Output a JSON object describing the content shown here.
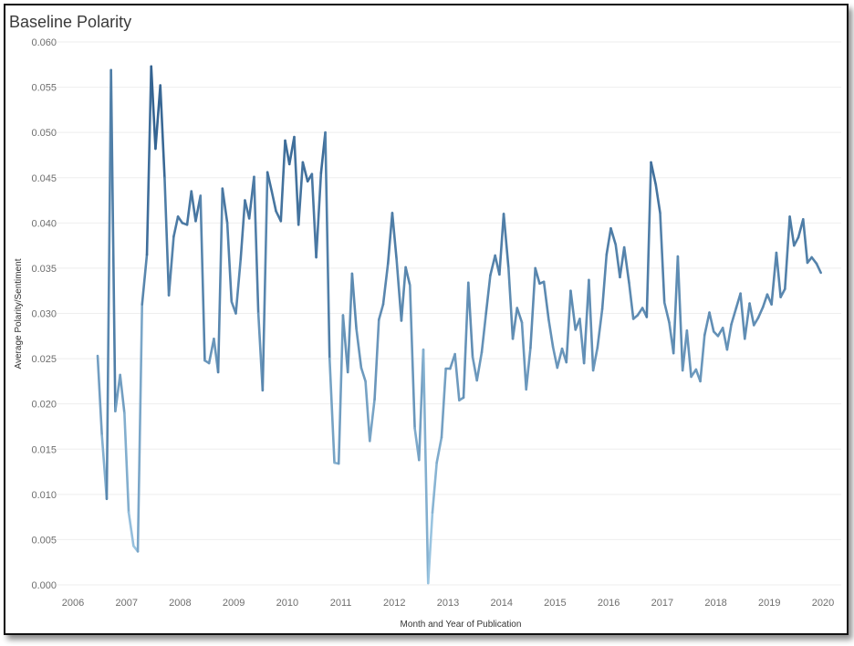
{
  "chart_data": {
    "type": "line",
    "title": "Baseline Polarity",
    "xlabel": "Month and Year of Publication",
    "ylabel": "Average Polarity/Sentiment",
    "xlim": [
      2006.0,
      2020.0
    ],
    "ylim": [
      0.0,
      0.06
    ],
    "x_ticks": [
      "2006",
      "2007",
      "2008",
      "2009",
      "2010",
      "2011",
      "2012",
      "2013",
      "2014",
      "2015",
      "2016",
      "2017",
      "2018",
      "2019",
      "2020"
    ],
    "y_ticks": [
      "0.000",
      "0.005",
      "0.010",
      "0.015",
      "0.020",
      "0.025",
      "0.030",
      "0.035",
      "0.040",
      "0.045",
      "0.050",
      "0.055",
      "0.060"
    ],
    "grid": "horizontal",
    "color_encoding": "sequential blue by value (light = low, dark = high)",
    "colors": {
      "low": "#a6d0ea",
      "high": "#2a5a8a"
    },
    "series": [
      {
        "points": [
          [
            2006.46,
            0.0253
          ],
          [
            2006.54,
            0.0165
          ],
          [
            2006.63,
            0.0095
          ],
          [
            2006.71,
            0.0569
          ],
          [
            2006.79,
            0.0192
          ],
          [
            2006.88,
            0.0232
          ],
          [
            2006.96,
            0.019
          ],
          [
            2007.04,
            0.008
          ],
          [
            2007.13,
            0.0043
          ],
          [
            2007.21,
            0.0037
          ],
          [
            2007.29,
            0.031
          ],
          [
            2007.38,
            0.0365
          ],
          [
            2007.46,
            0.0573
          ],
          [
            2007.54,
            0.0482
          ],
          [
            2007.63,
            0.0552
          ],
          [
            2007.71,
            0.045
          ],
          [
            2007.79,
            0.032
          ],
          [
            2007.88,
            0.0385
          ],
          [
            2007.96,
            0.0407
          ],
          [
            2008.04,
            0.04
          ],
          [
            2008.13,
            0.0398
          ],
          [
            2008.21,
            0.0435
          ],
          [
            2008.29,
            0.0402
          ],
          [
            2008.38,
            0.043
          ],
          [
            2008.46,
            0.0248
          ],
          [
            2008.54,
            0.0245
          ],
          [
            2008.63,
            0.0272
          ],
          [
            2008.71,
            0.0235
          ],
          [
            2008.79,
            0.0438
          ],
          [
            2008.88,
            0.04
          ],
          [
            2008.96,
            0.0313
          ],
          [
            2009.04,
            0.03
          ],
          [
            2009.13,
            0.036
          ],
          [
            2009.21,
            0.0425
          ],
          [
            2009.29,
            0.0405
          ],
          [
            2009.38,
            0.0451
          ],
          [
            2009.46,
            0.03
          ],
          [
            2009.54,
            0.0215
          ],
          [
            2009.63,
            0.0456
          ],
          [
            2009.71,
            0.0435
          ],
          [
            2009.79,
            0.0413
          ],
          [
            2009.88,
            0.0402
          ],
          [
            2009.96,
            0.0491
          ],
          [
            2010.04,
            0.0465
          ],
          [
            2010.13,
            0.0495
          ],
          [
            2010.21,
            0.0398
          ],
          [
            2010.29,
            0.0467
          ],
          [
            2010.38,
            0.0446
          ],
          [
            2010.46,
            0.0454
          ],
          [
            2010.54,
            0.0362
          ],
          [
            2010.63,
            0.0455
          ],
          [
            2010.71,
            0.05
          ],
          [
            2010.79,
            0.025
          ],
          [
            2010.88,
            0.0135
          ],
          [
            2010.96,
            0.0134
          ],
          [
            2011.04,
            0.0298
          ],
          [
            2011.13,
            0.0235
          ],
          [
            2011.21,
            0.0344
          ],
          [
            2011.29,
            0.0283
          ],
          [
            2011.38,
            0.024
          ],
          [
            2011.46,
            0.0225
          ],
          [
            2011.54,
            0.0159
          ],
          [
            2011.63,
            0.0205
          ],
          [
            2011.71,
            0.0293
          ],
          [
            2011.79,
            0.031
          ],
          [
            2011.88,
            0.0355
          ],
          [
            2011.96,
            0.0411
          ],
          [
            2012.04,
            0.036
          ],
          [
            2012.13,
            0.0292
          ],
          [
            2012.21,
            0.0351
          ],
          [
            2012.29,
            0.0331
          ],
          [
            2012.38,
            0.0173
          ],
          [
            2012.46,
            0.0138
          ],
          [
            2012.54,
            0.026
          ],
          [
            2012.63,
            0.0002
          ],
          [
            2012.71,
            0.008
          ],
          [
            2012.79,
            0.0135
          ],
          [
            2012.88,
            0.0163
          ],
          [
            2012.96,
            0.0239
          ],
          [
            2013.04,
            0.0239
          ],
          [
            2013.13,
            0.0255
          ],
          [
            2013.21,
            0.0204
          ],
          [
            2013.29,
            0.0207
          ],
          [
            2013.38,
            0.0334
          ],
          [
            2013.46,
            0.0252
          ],
          [
            2013.54,
            0.0226
          ],
          [
            2013.63,
            0.0257
          ],
          [
            2013.71,
            0.03
          ],
          [
            2013.79,
            0.0342
          ],
          [
            2013.88,
            0.0364
          ],
          [
            2013.96,
            0.0343
          ],
          [
            2014.04,
            0.041
          ],
          [
            2014.13,
            0.035
          ],
          [
            2014.21,
            0.0272
          ],
          [
            2014.29,
            0.0306
          ],
          [
            2014.38,
            0.029
          ],
          [
            2014.46,
            0.0216
          ],
          [
            2014.54,
            0.0262
          ],
          [
            2014.63,
            0.035
          ],
          [
            2014.71,
            0.0333
          ],
          [
            2014.79,
            0.0335
          ],
          [
            2014.88,
            0.0293
          ],
          [
            2014.96,
            0.0263
          ],
          [
            2015.04,
            0.024
          ],
          [
            2015.13,
            0.0261
          ],
          [
            2015.21,
            0.0246
          ],
          [
            2015.29,
            0.0325
          ],
          [
            2015.38,
            0.0282
          ],
          [
            2015.46,
            0.0294
          ],
          [
            2015.54,
            0.0245
          ],
          [
            2015.63,
            0.0337
          ],
          [
            2015.71,
            0.0237
          ],
          [
            2015.79,
            0.0262
          ],
          [
            2015.88,
            0.0305
          ],
          [
            2015.96,
            0.0365
          ],
          [
            2016.04,
            0.0394
          ],
          [
            2016.13,
            0.0376
          ],
          [
            2016.21,
            0.034
          ],
          [
            2016.29,
            0.0373
          ],
          [
            2016.38,
            0.0334
          ],
          [
            2016.46,
            0.0294
          ],
          [
            2016.54,
            0.0298
          ],
          [
            2016.63,
            0.0306
          ],
          [
            2016.71,
            0.0296
          ],
          [
            2016.79,
            0.0467
          ],
          [
            2016.88,
            0.0442
          ],
          [
            2016.96,
            0.0411
          ],
          [
            2017.04,
            0.0312
          ],
          [
            2017.13,
            0.029
          ],
          [
            2017.21,
            0.0256
          ],
          [
            2017.29,
            0.0363
          ],
          [
            2017.38,
            0.0237
          ],
          [
            2017.46,
            0.0281
          ],
          [
            2017.54,
            0.023
          ],
          [
            2017.63,
            0.0238
          ],
          [
            2017.71,
            0.0225
          ],
          [
            2017.79,
            0.0276
          ],
          [
            2017.88,
            0.0301
          ],
          [
            2017.96,
            0.028
          ],
          [
            2018.04,
            0.0275
          ],
          [
            2018.13,
            0.0284
          ],
          [
            2018.21,
            0.026
          ],
          [
            2018.29,
            0.0288
          ],
          [
            2018.38,
            0.0306
          ],
          [
            2018.46,
            0.0322
          ],
          [
            2018.54,
            0.0272
          ],
          [
            2018.63,
            0.0311
          ],
          [
            2018.71,
            0.0287
          ],
          [
            2018.79,
            0.0295
          ],
          [
            2018.88,
            0.0307
          ],
          [
            2018.96,
            0.0321
          ],
          [
            2019.04,
            0.031
          ],
          [
            2019.13,
            0.0367
          ],
          [
            2019.21,
            0.0318
          ],
          [
            2019.29,
            0.0327
          ],
          [
            2019.38,
            0.0407
          ],
          [
            2019.46,
            0.0375
          ],
          [
            2019.54,
            0.0384
          ],
          [
            2019.63,
            0.0404
          ],
          [
            2019.71,
            0.0356
          ],
          [
            2019.79,
            0.0362
          ],
          [
            2019.88,
            0.0355
          ],
          [
            2019.96,
            0.0345
          ]
        ]
      }
    ]
  }
}
